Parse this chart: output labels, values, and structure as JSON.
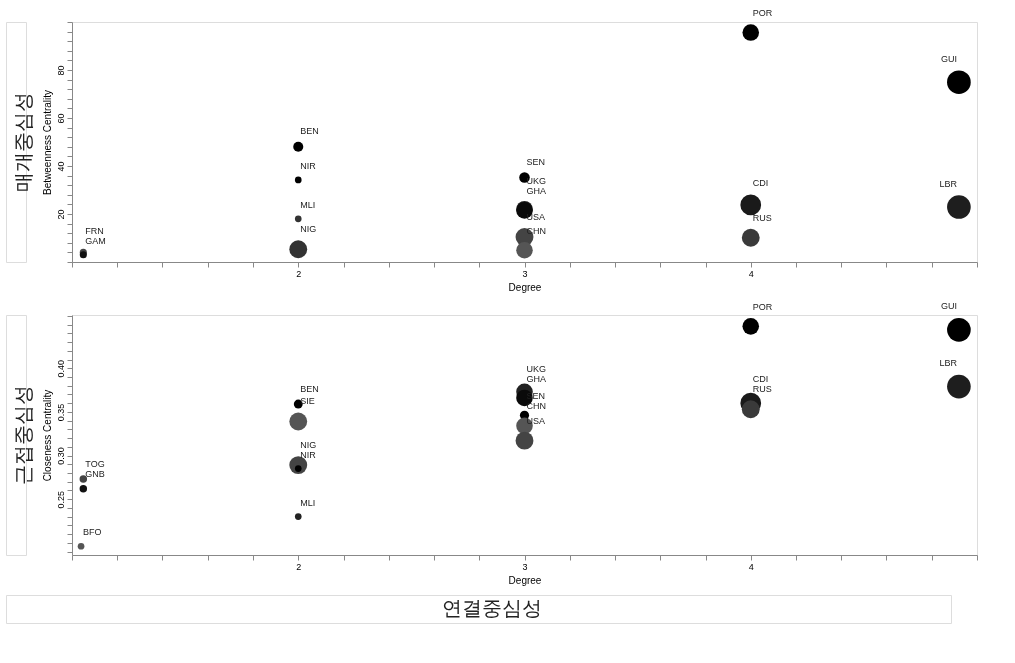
{
  "chart_data": [
    {
      "type": "bubble",
      "xlabel": "Degree",
      "ylabel": "Betweenness Centrality",
      "xlim": [
        1,
        5
      ],
      "xticks": [
        {
          "value": 1,
          "label": null
        },
        {
          "value": 1.2,
          "label": null
        },
        {
          "value": 1.4,
          "label": null
        },
        {
          "value": 1.6,
          "label": null
        },
        {
          "value": 1.8,
          "label": null
        },
        2,
        {
          "value": 2.2,
          "label": null
        },
        {
          "value": 2.4,
          "label": null
        },
        {
          "value": 2.6,
          "label": null
        },
        {
          "value": 2.8,
          "label": null
        },
        3,
        {
          "value": 3.2,
          "label": null
        },
        {
          "value": 3.4,
          "label": null
        },
        {
          "value": 3.6,
          "label": null
        },
        {
          "value": 3.8,
          "label": null
        },
        4,
        {
          "value": 4.2,
          "label": null
        },
        {
          "value": 4.4,
          "label": null
        },
        {
          "value": 4.6,
          "label": null
        },
        {
          "value": 4.8,
          "label": null
        },
        {
          "value": 5,
          "label": null
        }
      ],
      "ylim": [
        0,
        100
      ],
      "yticks": [
        {
          "value": 0,
          "label": null
        },
        {
          "value": 4,
          "label": null
        },
        {
          "value": 8,
          "label": null
        },
        {
          "value": 12,
          "label": null
        },
        {
          "value": 16,
          "label": null
        },
        20,
        {
          "value": 24,
          "label": null
        },
        {
          "value": 28,
          "label": null
        },
        {
          "value": 32,
          "label": null
        },
        {
          "value": 36,
          "label": null
        },
        40,
        {
          "value": 44,
          "label": null
        },
        {
          "value": 48,
          "label": null
        },
        {
          "value": 52,
          "label": null
        },
        {
          "value": 56,
          "label": null
        },
        60,
        {
          "value": 64,
          "label": null
        },
        {
          "value": 68,
          "label": null
        },
        {
          "value": 72,
          "label": null
        },
        {
          "value": 76,
          "label": null
        },
        80,
        {
          "value": 84,
          "label": null
        },
        {
          "value": 88,
          "label": null
        },
        {
          "value": 92,
          "label": null
        },
        {
          "value": 96,
          "label": null
        },
        {
          "value": 100,
          "label": null
        }
      ],
      "x": [
        1.05,
        1.05,
        2,
        2,
        2,
        2,
        3,
        3,
        3,
        3,
        3,
        4,
        4,
        4,
        4.92,
        4.92
      ],
      "values": [
        4,
        3,
        48,
        34.2,
        18,
        5.3,
        35.2,
        22,
        21.5,
        10.4,
        4.9,
        95.6,
        23.8,
        10.1,
        74.9,
        22.9
      ],
      "sizes": [
        0.09,
        0.09,
        0.18,
        0.08,
        0.08,
        0.57,
        0.2,
        0.49,
        0.49,
        0.57,
        0.49,
        0.49,
        0.77,
        0.57,
        1,
        1
      ],
      "colors": [
        "#444444",
        "#111111",
        "#000000",
        "#000000",
        "#333333",
        "#333333",
        "#000000",
        "#222222",
        "#0a0a0a",
        "#444444",
        "#555555",
        "#000000",
        "#1a1a1a",
        "#3a3a3a",
        "#000000",
        "#1e1e1e"
      ],
      "annotations": [
        "매개중심성",
        {
          "text": "FRN",
          "x": 1.05,
          "y": 4
        },
        {
          "text": "GAM",
          "x": 1.05,
          "y": 3
        },
        {
          "text": "BEN",
          "x": 2,
          "y": 48
        },
        {
          "text": "NIR",
          "x": 2,
          "y": 34.2
        },
        {
          "text": "MLI",
          "x": 2,
          "y": 18
        },
        {
          "text": "NIG",
          "x": 2,
          "y": 5.3
        },
        {
          "text": "SEN",
          "x": 3,
          "y": 35.2
        },
        {
          "text": "UKG",
          "x": 3,
          "y": 22
        },
        {
          "text": "GHA",
          "x": 3,
          "y": 21.5
        },
        {
          "text": "USA",
          "x": 3,
          "y": 10.4
        },
        {
          "text": "CHN",
          "x": 3,
          "y": 4.9
        },
        {
          "text": "POR",
          "x": 4,
          "y": 95.6
        },
        {
          "text": "CDI",
          "x": 4,
          "y": 23.8
        },
        {
          "text": "RUS",
          "x": 4,
          "y": 10.1
        },
        {
          "text": "GUI",
          "x": 4.92,
          "y": 74.9
        },
        {
          "text": "LBR",
          "x": 4.92,
          "y": 22.9
        }
      ]
    },
    {
      "type": "bubble",
      "xlabel": "Degree",
      "ylabel": "Closeness Centrality",
      "xlim": [
        1,
        5
      ],
      "xticks": [
        {
          "value": 1,
          "label": null
        },
        {
          "value": 1.2,
          "label": null
        },
        {
          "value": 1.4,
          "label": null
        },
        {
          "value": 1.6,
          "label": null
        },
        {
          "value": 1.8,
          "label": null
        },
        2,
        {
          "value": 2.2,
          "label": null
        },
        {
          "value": 2.4,
          "label": null
        },
        {
          "value": 2.6,
          "label": null
        },
        {
          "value": 2.8,
          "label": null
        },
        3,
        {
          "value": 3.2,
          "label": null
        },
        {
          "value": 3.4,
          "label": null
        },
        {
          "value": 3.6,
          "label": null
        },
        {
          "value": 3.8,
          "label": null
        },
        4,
        {
          "value": 4.2,
          "label": null
        },
        {
          "value": 4.4,
          "label": null
        },
        {
          "value": 4.6,
          "label": null
        },
        {
          "value": 4.8,
          "label": null
        },
        {
          "value": 5,
          "label": null
        }
      ],
      "ylim": [
        0.186,
        0.461
      ],
      "yticks": [
        {
          "value": 0.19,
          "label": null
        },
        {
          "value": 0.2,
          "label": null
        },
        {
          "value": 0.21,
          "label": null
        },
        {
          "value": 0.22,
          "label": null
        },
        {
          "value": 0.23,
          "label": null
        },
        {
          "value": 0.24,
          "label": null
        },
        0.25,
        {
          "value": 0.26,
          "label": null
        },
        {
          "value": 0.27,
          "label": null
        },
        {
          "value": 0.28,
          "label": null
        },
        {
          "value": 0.29,
          "label": null
        },
        {
          "value": 0.3,
          "label": "0.30"
        },
        {
          "value": 0.31,
          "label": null
        },
        {
          "value": 0.32,
          "label": null
        },
        {
          "value": 0.33,
          "label": null
        },
        {
          "value": 0.34,
          "label": null
        },
        0.35,
        {
          "value": 0.36,
          "label": null
        },
        {
          "value": 0.37,
          "label": null
        },
        {
          "value": 0.38,
          "label": null
        },
        {
          "value": 0.39,
          "label": null
        },
        {
          "value": 0.4,
          "label": "0.40"
        },
        {
          "value": 0.41,
          "label": null
        },
        {
          "value": 0.42,
          "label": null
        },
        {
          "value": 0.43,
          "label": null
        },
        {
          "value": 0.44,
          "label": null
        },
        {
          "value": 0.45,
          "label": null
        },
        {
          "value": 0.46,
          "label": null
        }
      ],
      "x": [
        1.05,
        1.05,
        1.04,
        2,
        2,
        2,
        2,
        2,
        3,
        3,
        3,
        3,
        3,
        4,
        4,
        4,
        4.92,
        4.92
      ],
      "values": [
        0.273,
        0.262,
        0.196,
        0.359,
        0.339,
        0.289,
        0.285,
        0.23,
        0.373,
        0.366,
        0.346,
        0.334,
        0.317,
        0.448,
        0.36,
        0.353,
        0.444,
        0.379
      ],
      "sizes": [
        0.1,
        0.1,
        0.08,
        0.14,
        0.57,
        0.57,
        0.08,
        0.08,
        0.49,
        0.49,
        0.15,
        0.49,
        0.57,
        0.49,
        0.77,
        0.57,
        1,
        1
      ],
      "colors": [
        "#444444",
        "#111111",
        "#555555",
        "#000000",
        "#555555",
        "#444444",
        "#000000",
        "#222222",
        "#222222",
        "#0a0a0a",
        "#000000",
        "#555555",
        "#444444",
        "#000000",
        "#1a1a1a",
        "#3a3a3a",
        "#000000",
        "#1e1e1e"
      ],
      "annotations": [
        "근접중심성",
        "연결중심성",
        {
          "text": "TOG",
          "x": 1.05,
          "y": 0.273
        },
        {
          "text": "GNB",
          "x": 1.05,
          "y": 0.262
        },
        {
          "text": "BFO",
          "x": 1.04,
          "y": 0.196
        },
        {
          "text": "BEN",
          "x": 2,
          "y": 0.359
        },
        {
          "text": "SIE",
          "x": 2,
          "y": 0.339
        },
        {
          "text": "NIG",
          "x": 2,
          "y": 0.289
        },
        {
          "text": "NIR",
          "x": 2,
          "y": 0.285
        },
        {
          "text": "MLI",
          "x": 2,
          "y": 0.23
        },
        {
          "text": "UKG",
          "x": 3,
          "y": 0.373
        },
        {
          "text": "GHA",
          "x": 3,
          "y": 0.366
        },
        {
          "text": "SEN",
          "x": 3,
          "y": 0.346
        },
        {
          "text": "CHN",
          "x": 3,
          "y": 0.334
        },
        {
          "text": "USA",
          "x": 3,
          "y": 0.317
        },
        {
          "text": "POR",
          "x": 4,
          "y": 0.448
        },
        {
          "text": "CDI",
          "x": 4,
          "y": 0.36
        },
        {
          "text": "RUS",
          "x": 4,
          "y": 0.353
        },
        {
          "text": "GUI",
          "x": 4.92,
          "y": 0.444
        },
        {
          "text": "LBR",
          "x": 4.92,
          "y": 0.379
        }
      ]
    }
  ]
}
